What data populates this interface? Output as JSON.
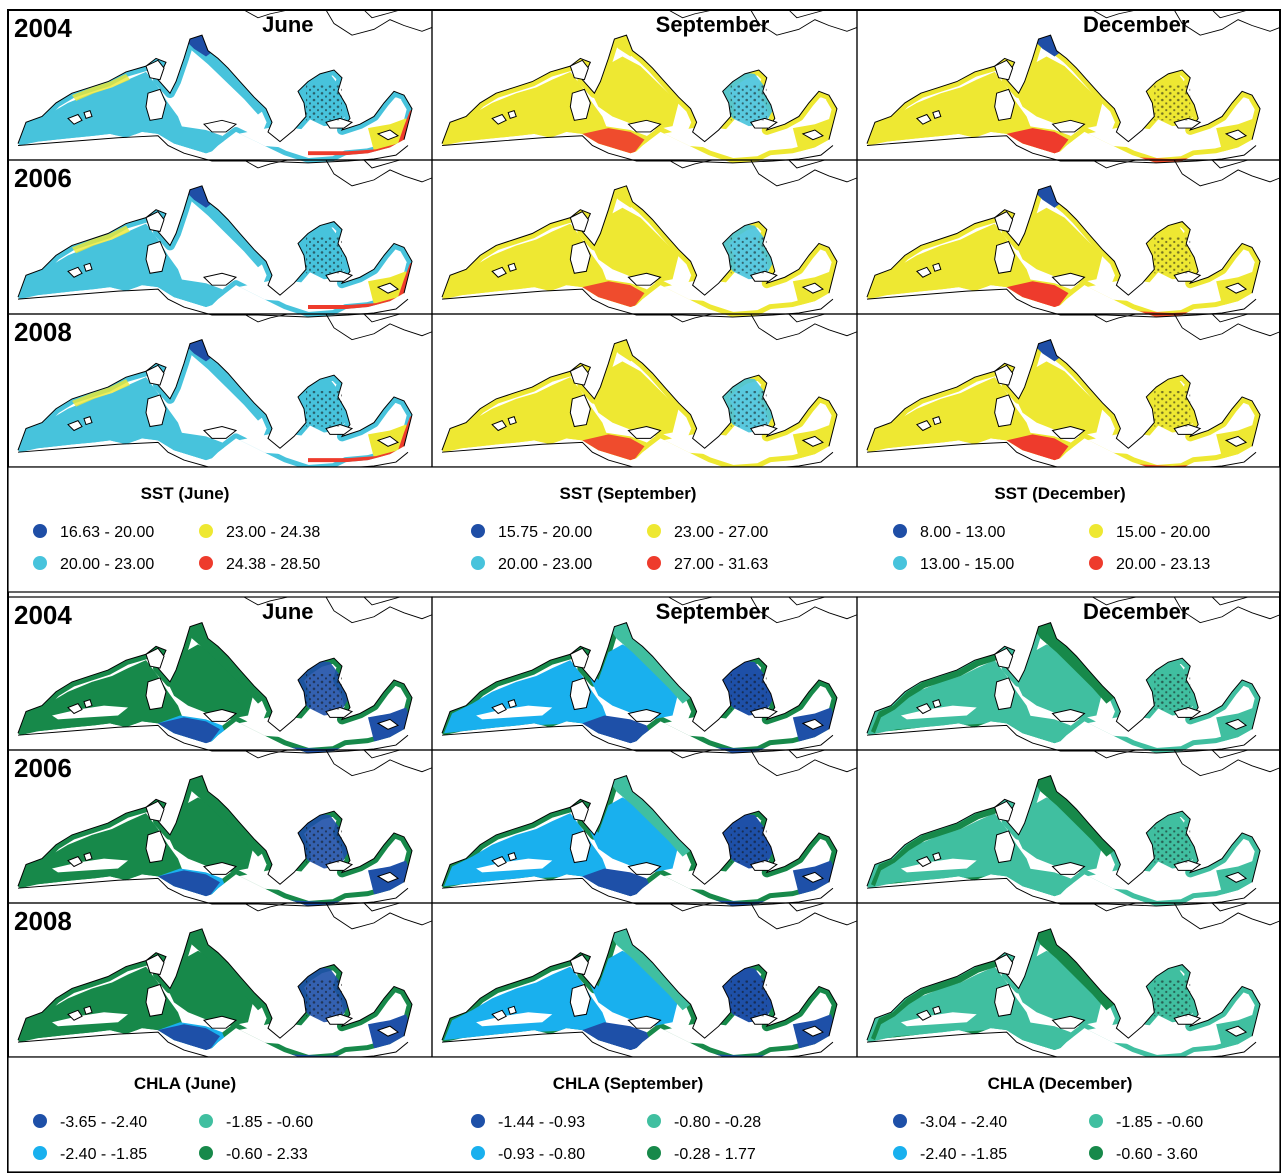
{
  "colors": {
    "sst": [
      "#1f4ea6",
      "#47c3dc",
      "#eee832",
      "#ee3b2c"
    ],
    "chla": [
      "#1e50a8",
      "#19b0ee",
      "#40bfa0",
      "#17894a"
    ],
    "coast": "#000000",
    "background": "#ffffff"
  },
  "sections": [
    {
      "id": "sst",
      "rows": [
        {
          "year": "2004",
          "cells": [
            {
              "style": "sst_june",
              "month": "June"
            },
            {
              "style": "sst_sep",
              "month": "September"
            },
            {
              "style": "sst_dec",
              "month": "December"
            }
          ]
        },
        {
          "year": "2006",
          "cells": [
            {
              "style": "sst_june",
              "month": ""
            },
            {
              "style": "sst_sep",
              "month": ""
            },
            {
              "style": "sst_dec",
              "month": ""
            }
          ]
        },
        {
          "year": "2008",
          "cells": [
            {
              "style": "sst_june",
              "month": ""
            },
            {
              "style": "sst_sep",
              "month": ""
            },
            {
              "style": "sst_dec",
              "month": ""
            }
          ]
        }
      ],
      "legends": [
        {
          "title": "SST (June)",
          "items": [
            {
              "color": "#1f4ea6",
              "label": "16.63 - 20.00"
            },
            {
              "color": "#eee832",
              "label": "23.00 - 24.38"
            },
            {
              "color": "#47c3dc",
              "label": "20.00 - 23.00"
            },
            {
              "color": "#ee3b2c",
              "label": "24.38 - 28.50"
            }
          ]
        },
        {
          "title": "SST (September)",
          "items": [
            {
              "color": "#1f4ea6",
              "label": "15.75 - 20.00"
            },
            {
              "color": "#eee832",
              "label": "23.00 - 27.00"
            },
            {
              "color": "#47c3dc",
              "label": "20.00 - 23.00"
            },
            {
              "color": "#ee3b2c",
              "label": "27.00 - 31.63"
            }
          ]
        },
        {
          "title": "SST (December)",
          "items": [
            {
              "color": "#1f4ea6",
              "label": "8.00 - 13.00"
            },
            {
              "color": "#eee832",
              "label": "15.00 - 20.00"
            },
            {
              "color": "#47c3dc",
              "label": "13.00 - 15.00"
            },
            {
              "color": "#ee3b2c",
              "label": "20.00 - 23.13"
            }
          ]
        }
      ]
    },
    {
      "id": "chla",
      "rows": [
        {
          "year": "2004",
          "cells": [
            {
              "style": "chla_june",
              "month": "June"
            },
            {
              "style": "chla_sep",
              "month": "September"
            },
            {
              "style": "chla_dec",
              "month": "December"
            }
          ]
        },
        {
          "year": "2006",
          "cells": [
            {
              "style": "chla_june",
              "month": ""
            },
            {
              "style": "chla_sep",
              "month": ""
            },
            {
              "style": "chla_dec",
              "month": ""
            }
          ]
        },
        {
          "year": "2008",
          "cells": [
            {
              "style": "chla_june",
              "month": ""
            },
            {
              "style": "chla_sep",
              "month": ""
            },
            {
              "style": "chla_dec",
              "month": ""
            }
          ]
        }
      ],
      "legends": [
        {
          "title": "CHLA (June)",
          "items": [
            {
              "color": "#1e50a8",
              "label": "-3.65 - -2.40"
            },
            {
              "color": "#40bfa0",
              "label": "-1.85 - -0.60"
            },
            {
              "color": "#19b0ee",
              "label": "-2.40 - -1.85"
            },
            {
              "color": "#17894a",
              "label": "-0.60 - 2.33"
            }
          ]
        },
        {
          "title": "CHLA (September)",
          "items": [
            {
              "color": "#1e50a8",
              "label": "-1.44 - -0.93"
            },
            {
              "color": "#40bfa0",
              "label": "-0.80 - -0.28"
            },
            {
              "color": "#19b0ee",
              "label": "-0.93 - -0.80"
            },
            {
              "color": "#17894a",
              "label": "-0.28 - 1.77"
            }
          ]
        },
        {
          "title": "CHLA (December)",
          "items": [
            {
              "color": "#1e50a8",
              "label": "-3.04 - -2.40"
            },
            {
              "color": "#40bfa0",
              "label": "-1.85 - -0.60"
            },
            {
              "color": "#19b0ee",
              "label": "-2.40 - -1.85"
            },
            {
              "color": "#17894a",
              "label": "-0.60 - 3.60"
            }
          ]
        }
      ]
    }
  ]
}
